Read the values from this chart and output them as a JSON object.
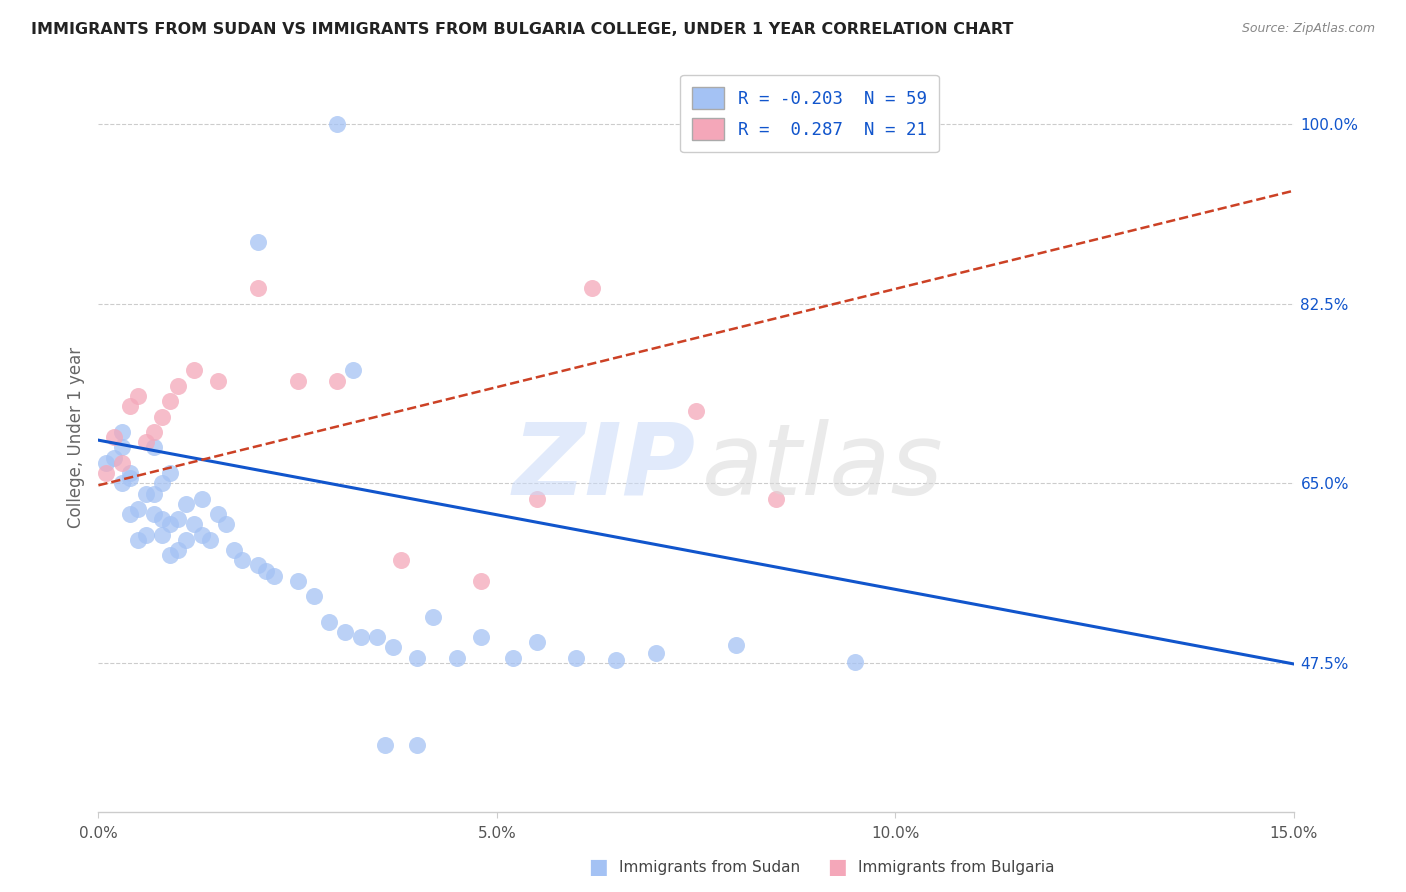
{
  "title": "IMMIGRANTS FROM SUDAN VS IMMIGRANTS FROM BULGARIA COLLEGE, UNDER 1 YEAR CORRELATION CHART",
  "source": "Source: ZipAtlas.com",
  "ylabel": "College, Under 1 year",
  "xmin": 0.0,
  "xmax": 0.15,
  "ymin": 0.33,
  "ymax": 1.06,
  "yticks": [
    0.475,
    0.65,
    0.825,
    1.0
  ],
  "ytick_labels": [
    "47.5%",
    "65.0%",
    "82.5%",
    "100.0%"
  ],
  "xticks": [
    0.0,
    0.05,
    0.1,
    0.15
  ],
  "xtick_labels": [
    "0.0%",
    "5.0%",
    "10.0%",
    "15.0%"
  ],
  "sudan_color": "#a4c2f4",
  "bulgaria_color": "#f4a7b9",
  "sudan_line_color": "#1155cc",
  "bulgaria_line_color": "#cc4125",
  "ytick_color": "#1155cc",
  "grid_color": "#cccccc",
  "sudan_trend_x": [
    0.0,
    0.15
  ],
  "sudan_trend_y": [
    0.692,
    0.474
  ],
  "bulgaria_trend_x": [
    0.0,
    0.15
  ],
  "bulgaria_trend_y": [
    0.648,
    0.935
  ],
  "sudan_x": [
    0.001,
    0.002,
    0.003,
    0.003,
    0.004,
    0.004,
    0.005,
    0.005,
    0.006,
    0.006,
    0.007,
    0.007,
    0.007,
    0.008,
    0.008,
    0.009,
    0.009,
    0.01,
    0.01,
    0.011,
    0.011,
    0.012,
    0.013,
    0.013,
    0.014,
    0.015,
    0.016,
    0.017,
    0.018,
    0.02,
    0.021,
    0.022,
    0.025,
    0.027,
    0.029,
    0.031,
    0.033,
    0.035,
    0.037,
    0.04,
    0.042,
    0.045,
    0.048,
    0.052,
    0.055,
    0.06,
    0.065,
    0.07,
    0.08,
    0.095,
    0.03,
    0.02,
    0.032,
    0.036,
    0.04,
    0.003,
    0.004,
    0.008,
    0.009
  ],
  "sudan_y": [
    0.67,
    0.675,
    0.685,
    0.7,
    0.62,
    0.66,
    0.595,
    0.625,
    0.6,
    0.64,
    0.62,
    0.64,
    0.685,
    0.6,
    0.615,
    0.58,
    0.61,
    0.585,
    0.615,
    0.595,
    0.63,
    0.61,
    0.6,
    0.635,
    0.595,
    0.62,
    0.61,
    0.585,
    0.575,
    0.57,
    0.565,
    0.56,
    0.555,
    0.54,
    0.515,
    0.505,
    0.5,
    0.5,
    0.49,
    0.48,
    0.52,
    0.48,
    0.5,
    0.48,
    0.495,
    0.48,
    0.478,
    0.485,
    0.492,
    0.476,
    1.0,
    0.885,
    0.76,
    0.395,
    0.395,
    0.65,
    0.655,
    0.65,
    0.66
  ],
  "bulgaria_x": [
    0.001,
    0.002,
    0.003,
    0.004,
    0.005,
    0.006,
    0.007,
    0.008,
    0.009,
    0.01,
    0.012,
    0.015,
    0.02,
    0.025,
    0.03,
    0.038,
    0.048,
    0.055,
    0.062,
    0.075,
    0.085
  ],
  "bulgaria_y": [
    0.66,
    0.695,
    0.67,
    0.725,
    0.735,
    0.69,
    0.7,
    0.715,
    0.73,
    0.745,
    0.76,
    0.75,
    0.84,
    0.75,
    0.75,
    0.575,
    0.555,
    0.635,
    0.84,
    0.72,
    0.635
  ],
  "legend_sudan_label": "R = -0.203  N = 59",
  "legend_bulgaria_label": "R =  0.287  N = 21",
  "bottom_legend_sudan": "Immigrants from Sudan",
  "bottom_legend_bulgaria": "Immigrants from Bulgaria"
}
